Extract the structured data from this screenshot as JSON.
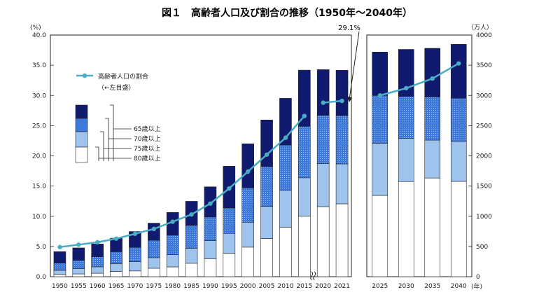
{
  "chart_data": {
    "type": "bar",
    "title": "図１　高齢者人口及び割合の推移（1950年～2040年）",
    "left_axis_unit": "(%)",
    "right_axis_unit": "（万人）",
    "x_unit": "(年)",
    "left_ylim": [
      0,
      40
    ],
    "right_ylim": [
      0,
      4000
    ],
    "left_ticks": [
      "0.0",
      "5.0",
      "10.0",
      "15.0",
      "20.0",
      "25.0",
      "30.0",
      "35.0",
      "40.0"
    ],
    "right_ticks": [
      "0",
      "500",
      "1000",
      "1500",
      "2000",
      "2500",
      "3000",
      "3500",
      "4000"
    ],
    "categories": [
      "1950",
      "1955",
      "1960",
      "1965",
      "1970",
      "1975",
      "1980",
      "1985",
      "1990",
      "1995",
      "2000",
      "2005",
      "2010",
      "2015",
      "2020",
      "2021",
      "2025",
      "2030",
      "2035",
      "2040"
    ],
    "stack_series": [
      {
        "name": "80歳以上",
        "values": [
          37,
          46,
          57,
          88,
          95,
          140,
          162,
          222,
          297,
          389,
          489,
          631,
          820,
          1002,
          1160,
          1206,
          1345,
          1574,
          1633,
          1578
        ]
      },
      {
        "name": "75歳以上",
        "values": [
          68,
          88,
          106,
          128,
          155,
          175,
          204,
          249,
          300,
          327,
          412,
          534,
          611,
          635,
          712,
          661,
          864,
          714,
          628,
          662
        ]
      },
      {
        "name": "70歳以上",
        "values": [
          120,
          137,
          165,
          197,
          235,
          286,
          321,
          378,
          390,
          422,
          569,
          659,
          749,
          852,
          800,
          801,
          790,
          696,
          714,
          716
        ]
      },
      {
        "name": "65歳以上",
        "values": [
          190,
          205,
          213,
          224,
          262,
          285,
          376,
          398,
          500,
          690,
          730,
          770,
          772,
          930,
          755,
          749,
          719,
          778,
          805,
          890
        ]
      }
    ],
    "line_series": {
      "name": "高齢者人口の割合",
      "sublabel": "（←左目盛）",
      "segments": [
        {
          "x": [
            "1950",
            "1955",
            "1960",
            "1965",
            "1970",
            "1975",
            "1980",
            "1985",
            "1990",
            "1995",
            "2000",
            "2005",
            "2010",
            "2015"
          ],
          "values": [
            4.9,
            5.3,
            5.7,
            6.3,
            7.1,
            7.9,
            9.1,
            10.3,
            12.1,
            14.6,
            17.4,
            20.2,
            23.0,
            26.6
          ]
        },
        {
          "x": [
            "2020",
            "2021"
          ],
          "values": [
            28.8,
            29.1
          ]
        },
        {
          "x": [
            "2025",
            "2030",
            "2035",
            "2040"
          ],
          "values": [
            30.0,
            31.2,
            32.8,
            35.3
          ]
        }
      ]
    },
    "annotation": "29.1%",
    "colors": {
      "s80": "#ffffff",
      "s75": "#9ec4ee",
      "s70": "#3d79dd",
      "s65": "#101a6e",
      "line": "#4bacc6",
      "axis": "#222222"
    }
  }
}
